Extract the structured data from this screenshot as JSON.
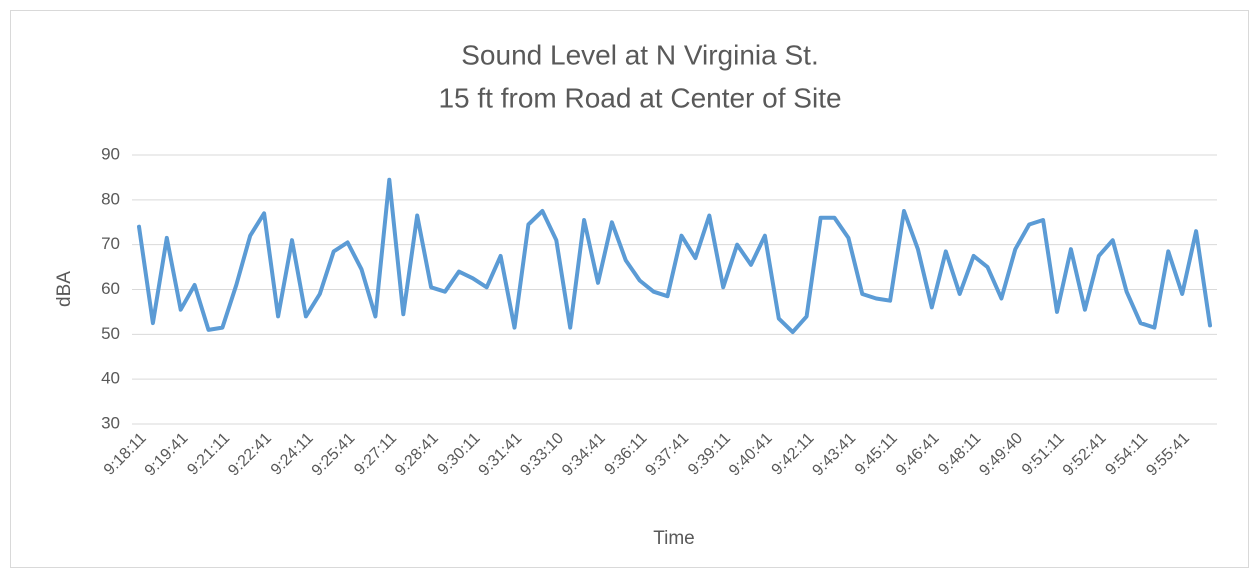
{
  "chart_data": {
    "type": "line",
    "title": "Sound Level at N Virginia St.",
    "subtitle": "15 ft from Road at Center of Site",
    "xlabel": "Time",
    "ylabel": "dBA",
    "categories": [
      "9:18:11",
      null,
      null,
      "9:19:41",
      null,
      null,
      "9:21:11",
      null,
      null,
      "9:22:41",
      null,
      null,
      "9:24:11",
      null,
      null,
      "9:25:41",
      null,
      null,
      "9:27:11",
      null,
      null,
      "9:28:41",
      null,
      null,
      "9:30:11",
      null,
      null,
      "9:31:41",
      null,
      null,
      "9:33:10",
      null,
      null,
      "9:34:41",
      null,
      null,
      "9:36:11",
      null,
      null,
      "9:37:41",
      null,
      null,
      "9:39:11",
      null,
      null,
      "9:40:41",
      null,
      null,
      "9:42:11",
      null,
      null,
      "9:43:41",
      null,
      null,
      "9:45:11",
      null,
      null,
      "9:46:41",
      null,
      null,
      "9:48:11",
      null,
      null,
      "9:49:40",
      null,
      null,
      "9:51:11",
      null,
      null,
      "9:52:41",
      null,
      null,
      "9:54:11",
      null,
      null,
      "9:55:41",
      null,
      null
    ],
    "series": [
      {
        "name": "dBA",
        "color": "#5b9bd5",
        "values": [
          74,
          52.5,
          71.5,
          55.5,
          61,
          51,
          51.5,
          61,
          72,
          77,
          54,
          71,
          54,
          59,
          68.5,
          70.5,
          64.5,
          54,
          84.5,
          54.5,
          76.5,
          60.5,
          59.5,
          64,
          62.5,
          60.5,
          67.5,
          51.5,
          74.5,
          77.5,
          71,
          51.5,
          75.5,
          61.5,
          75,
          66.5,
          62,
          59.5,
          58.5,
          72,
          67,
          76.5,
          60.5,
          70,
          65.5,
          72,
          53.5,
          50.5,
          54,
          76,
          76,
          71.5,
          59,
          58,
          57.5,
          77.5,
          69,
          56,
          68.5,
          59,
          67.5,
          65,
          58,
          69,
          74.5,
          75.5,
          55,
          69,
          55.5,
          67.5,
          71,
          59.5,
          52.5,
          51.5,
          68.5,
          59,
          73,
          52
        ]
      }
    ],
    "ylim": [
      30,
      90
    ],
    "yticks": [
      30,
      40,
      50,
      60,
      70,
      80,
      90
    ],
    "grid": true
  }
}
